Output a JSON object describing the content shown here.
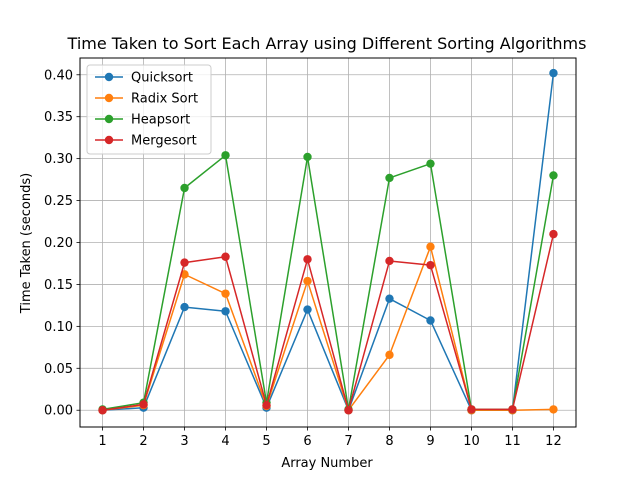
{
  "chart_data": {
    "type": "line",
    "title": "Time Taken to Sort Each Array using Different Sorting Algorithms",
    "xlabel": "Array Number",
    "ylabel": "Time Taken (seconds)",
    "x": [
      1,
      2,
      3,
      4,
      5,
      6,
      7,
      8,
      9,
      10,
      11,
      12
    ],
    "xlim": [
      0.45,
      12.55
    ],
    "ylim": [
      -0.02,
      0.42
    ],
    "yticks": [
      0.0,
      0.05,
      0.1,
      0.15,
      0.2,
      0.25,
      0.3,
      0.35,
      0.4
    ],
    "ytick_labels": [
      "0.00",
      "0.05",
      "0.10",
      "0.15",
      "0.20",
      "0.25",
      "0.30",
      "0.35",
      "0.40"
    ],
    "grid": true,
    "legend_position": "top-left",
    "series": [
      {
        "name": "Quicksort",
        "color": "#1f77b4",
        "values": [
          0.0,
          0.003,
          0.123,
          0.118,
          0.003,
          0.12,
          0.0,
          0.133,
          0.107,
          0.0,
          0.0,
          0.402
        ]
      },
      {
        "name": "Radix Sort",
        "color": "#ff7f0e",
        "values": [
          0.0,
          0.006,
          0.162,
          0.139,
          0.005,
          0.154,
          0.0,
          0.066,
          0.195,
          0.0,
          0.0,
          0.001
        ]
      },
      {
        "name": "Heapsort",
        "color": "#2ca02c",
        "values": [
          0.001,
          0.009,
          0.265,
          0.304,
          0.009,
          0.302,
          0.001,
          0.277,
          0.294,
          0.001,
          0.001,
          0.28
        ]
      },
      {
        "name": "Mergesort",
        "color": "#d62728",
        "values": [
          0.0,
          0.007,
          0.176,
          0.183,
          0.006,
          0.18,
          0.0,
          0.178,
          0.173,
          0.001,
          0.001,
          0.21
        ]
      }
    ]
  }
}
